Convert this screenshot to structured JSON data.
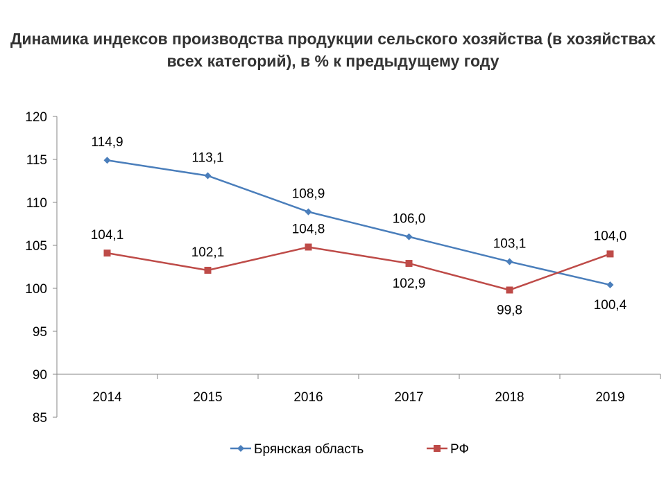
{
  "chart_data": {
    "type": "line",
    "title": "Динамика индексов производства продукции сельского хозяйства (в хозяйствах всех категорий), в % к предыдущему году",
    "categories": [
      "2014",
      "2015",
      "2016",
      "2017",
      "2018",
      "2019"
    ],
    "ylim": [
      85,
      120
    ],
    "yticks": [
      85,
      90,
      95,
      100,
      105,
      110,
      115,
      120
    ],
    "ytick_labels": [
      "85",
      "90",
      "95",
      "100",
      "105",
      "110",
      "115",
      "120"
    ],
    "x_axis_crosses_at": 90,
    "grid": false,
    "legend_position": "bottom",
    "series": [
      {
        "name": "Брянская область",
        "color": "#4A7EBB",
        "marker": "diamond",
        "values": [
          114.9,
          113.1,
          108.9,
          106.0,
          103.1,
          100.4
        ],
        "labels": [
          "114,9",
          "113,1",
          "108,9",
          "106,0",
          "103,1",
          "100,4"
        ],
        "label_pos": [
          "above",
          "above",
          "above",
          "above",
          "above",
          "below"
        ]
      },
      {
        "name": "РФ",
        "color": "#BE4B48",
        "marker": "square",
        "values": [
          104.1,
          102.1,
          104.8,
          102.9,
          99.8,
          104.0
        ],
        "labels": [
          "104,1",
          "102,1",
          "104,8",
          "102,9",
          "99,8",
          "104,0"
        ],
        "label_pos": [
          "above",
          "above",
          "above",
          "below",
          "below",
          "above"
        ]
      }
    ]
  }
}
